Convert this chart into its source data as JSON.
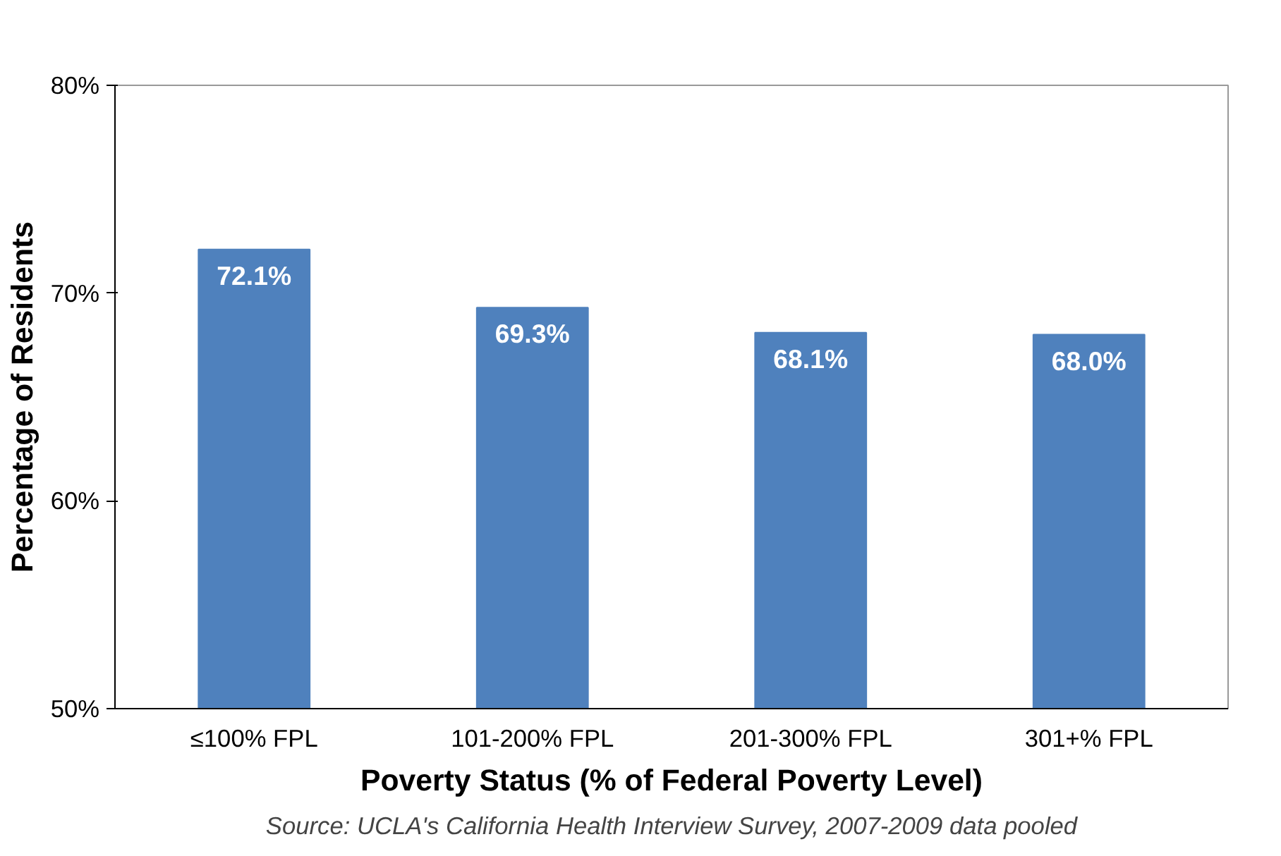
{
  "chart_data": {
    "type": "bar",
    "xlabel": "Poverty Status (% of Federal Poverty Level)",
    "ylabel": "Percentage of Residents",
    "categories": [
      "≤100% FPL",
      "101-200% FPL",
      "201-300% FPL",
      "301+% FPL"
    ],
    "values": [
      72.1,
      69.3,
      68.1,
      68.0
    ],
    "color": "#4f81bd",
    "value_labels": [
      "72.1%",
      "69.3%",
      "68.1%",
      "68.0%"
    ],
    "ylim": [
      50,
      80
    ],
    "yticks": [
      {
        "value": 50,
        "label": "50%"
      },
      {
        "value": 60,
        "label": "60%"
      },
      {
        "value": 70,
        "label": "70%"
      },
      {
        "value": 80,
        "label": "80%"
      }
    ],
    "grid": false,
    "annotations": [
      "Source: UCLA's California Health Interview Survey, 2007-2009 data pooled"
    ]
  }
}
